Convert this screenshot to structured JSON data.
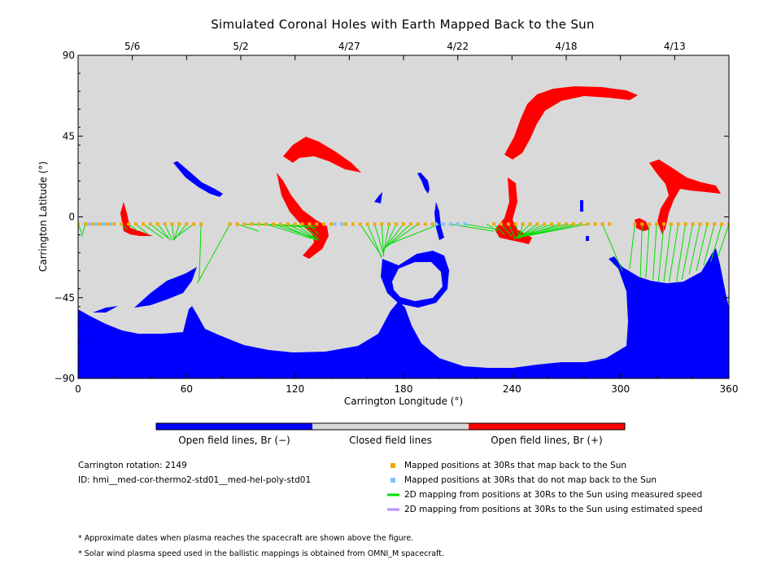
{
  "chart_data": {
    "type": "scatter",
    "title": "Simulated Coronal Holes with Earth Mapped Back to the Sun",
    "xlabel": "Carrington Longitude (°)",
    "ylabel": "Carrington Latitude (°)",
    "xlim": [
      0,
      360
    ],
    "ylim": [
      -90,
      90
    ],
    "x_ticks": [
      "0",
      "60",
      "120",
      "180",
      "240",
      "300",
      "360"
    ],
    "y_ticks": [
      "90",
      "45",
      "0",
      "−45",
      "−90"
    ],
    "top_axis_dates": [
      {
        "date": "5/6",
        "lon": 30
      },
      {
        "date": "5/2",
        "lon": 90
      },
      {
        "date": "4/27",
        "lon": 150
      },
      {
        "date": "4/22",
        "lon": 210
      },
      {
        "date": "4/18",
        "lon": 270
      },
      {
        "date": "4/13",
        "lon": 330
      }
    ],
    "mapped_positions_back": {
      "name": "Mapped positions at 30Rs that map back to the Sun",
      "lat": -4,
      "lon": [
        0,
        4,
        8,
        12,
        16,
        20,
        24,
        28,
        32,
        36,
        40,
        44,
        48,
        52,
        56,
        60,
        64,
        68,
        84,
        88,
        92,
        96,
        100,
        104,
        108,
        112,
        116,
        120,
        124,
        128,
        132,
        136,
        140,
        148,
        152,
        156,
        160,
        164,
        168,
        172,
        176,
        180,
        184,
        188,
        192,
        196,
        230,
        234,
        238,
        242,
        246,
        250,
        254,
        258,
        262,
        266,
        270,
        274,
        278,
        282,
        286,
        290,
        294,
        308,
        312,
        316,
        320,
        324,
        328,
        332,
        336,
        340,
        344,
        348,
        352,
        356,
        360
      ]
    },
    "mapped_positions_no": {
      "name": "Mapped positions at 30Rs that do not map back to the Sun",
      "lat": -4,
      "lon": [
        6,
        10,
        14,
        18,
        142,
        146,
        198,
        202,
        206,
        210,
        214
      ]
    },
    "measured_links": {
      "name": "2D mapping from positions at 30Rs to the Sun using measured speed",
      "lines": [
        [
          0,
          -4,
          2,
          -9
        ],
        [
          4,
          -4,
          2,
          -11
        ],
        [
          24,
          -4,
          27,
          -7
        ],
        [
          28,
          -4,
          33,
          -8
        ],
        [
          32,
          -4,
          39,
          -10
        ],
        [
          36,
          -4,
          47,
          -12
        ],
        [
          40,
          -4,
          50,
          -12
        ],
        [
          44,
          -4,
          51,
          -13
        ],
        [
          48,
          -4,
          52,
          -13
        ],
        [
          52,
          -4,
          53,
          -13
        ],
        [
          56,
          -4,
          53,
          -13
        ],
        [
          60,
          -4,
          53,
          -13
        ],
        [
          64,
          -4,
          53,
          -12
        ],
        [
          68,
          -4,
          67,
          -35
        ],
        [
          84,
          -4,
          66,
          -37
        ],
        [
          88,
          -4,
          100,
          -8
        ],
        [
          92,
          -4,
          126,
          -5
        ],
        [
          96,
          -4,
          131,
          -5
        ],
        [
          100,
          -4,
          132,
          -6
        ],
        [
          104,
          -4,
          129,
          -12
        ],
        [
          108,
          -4,
          131,
          -12
        ],
        [
          112,
          -4,
          132,
          -13
        ],
        [
          116,
          -4,
          133,
          -13
        ],
        [
          120,
          -4,
          133,
          -13
        ],
        [
          124,
          -4,
          133,
          -12
        ],
        [
          128,
          -4,
          133,
          -10
        ],
        [
          156,
          -4,
          168,
          -22
        ],
        [
          160,
          -4,
          168,
          -23
        ],
        [
          164,
          -4,
          169,
          -21
        ],
        [
          168,
          -4,
          169,
          -22
        ],
        [
          172,
          -4,
          169,
          -20
        ],
        [
          176,
          -4,
          169,
          -19
        ],
        [
          180,
          -4,
          169,
          -18
        ],
        [
          184,
          -4,
          170,
          -17
        ],
        [
          188,
          -4,
          170,
          -17
        ],
        [
          200,
          -4,
          170,
          -16
        ],
        [
          206,
          -4,
          230,
          -8
        ],
        [
          214,
          -4,
          232,
          -7
        ],
        [
          226,
          -4,
          232,
          -8
        ],
        [
          230,
          -4,
          236,
          -10
        ],
        [
          234,
          -4,
          240,
          -11
        ],
        [
          238,
          -4,
          242,
          -12
        ],
        [
          242,
          -4,
          244,
          -11
        ],
        [
          246,
          -4,
          244,
          -11
        ],
        [
          250,
          -4,
          243,
          -11
        ],
        [
          254,
          -4,
          243,
          -12
        ],
        [
          258,
          -4,
          242,
          -12
        ],
        [
          262,
          -4,
          242,
          -12
        ],
        [
          266,
          -4,
          243,
          -12
        ],
        [
          270,
          -4,
          243,
          -11
        ],
        [
          274,
          -4,
          241,
          -12
        ],
        [
          278,
          -4,
          241,
          -12
        ],
        [
          282,
          -4,
          241,
          -12
        ],
        [
          290,
          -4,
          301,
          -30
        ],
        [
          308,
          -4,
          305,
          -29
        ],
        [
          312,
          -4,
          311,
          -34
        ],
        [
          316,
          -4,
          314,
          -34
        ],
        [
          320,
          -4,
          318,
          -35
        ],
        [
          324,
          -4,
          321,
          -36
        ],
        [
          328,
          -4,
          324,
          -36
        ],
        [
          332,
          -4,
          327,
          -36
        ],
        [
          336,
          -4,
          331,
          -36
        ],
        [
          340,
          -4,
          334,
          -35
        ],
        [
          344,
          -4,
          338,
          -32
        ],
        [
          348,
          -4,
          342,
          -30
        ],
        [
          352,
          -4,
          346,
          -27
        ],
        [
          356,
          -4,
          350,
          -25
        ],
        [
          360,
          -4,
          354,
          -22
        ]
      ]
    },
    "colorbar": [
      {
        "label": "Open field lines, Br (−)",
        "color": "#0000ff"
      },
      {
        "label": "Closed field lines",
        "color": "#d9d9d9"
      },
      {
        "label": "Open field lines, Br (+)",
        "color": "#ff0000"
      }
    ],
    "colors": {
      "negative": "#0000ff",
      "closed": "#d9d9d9",
      "positive": "#ff0000",
      "mapped": "#f0a800",
      "unmapped": "#80c0ff",
      "measured": "#00dd00",
      "estimated": "#bb88ff"
    },
    "legend_placement": "bottom-right"
  },
  "info": {
    "rotation": "Carrington rotation: 2149",
    "id": "ID: hmi__med-cor-thermo2-std01__med-hel-poly-std01"
  },
  "legend": [
    {
      "label": "Mapped positions at 30Rs that map back to the Sun"
    },
    {
      "label": "Mapped positions at 30Rs that do not map back to the Sun"
    },
    {
      "label": "2D mapping from positions at 30Rs to the Sun using measured speed"
    },
    {
      "label": "2D mapping from positions at 30Rs to the Sun using estimated speed"
    }
  ],
  "notes": [
    "* Approximate dates when plasma reaches the spacecraft are shown above the figure.",
    "* Solar wind plasma speed used in the ballistic mappings is obtained from OMNI_M spacecraft."
  ]
}
